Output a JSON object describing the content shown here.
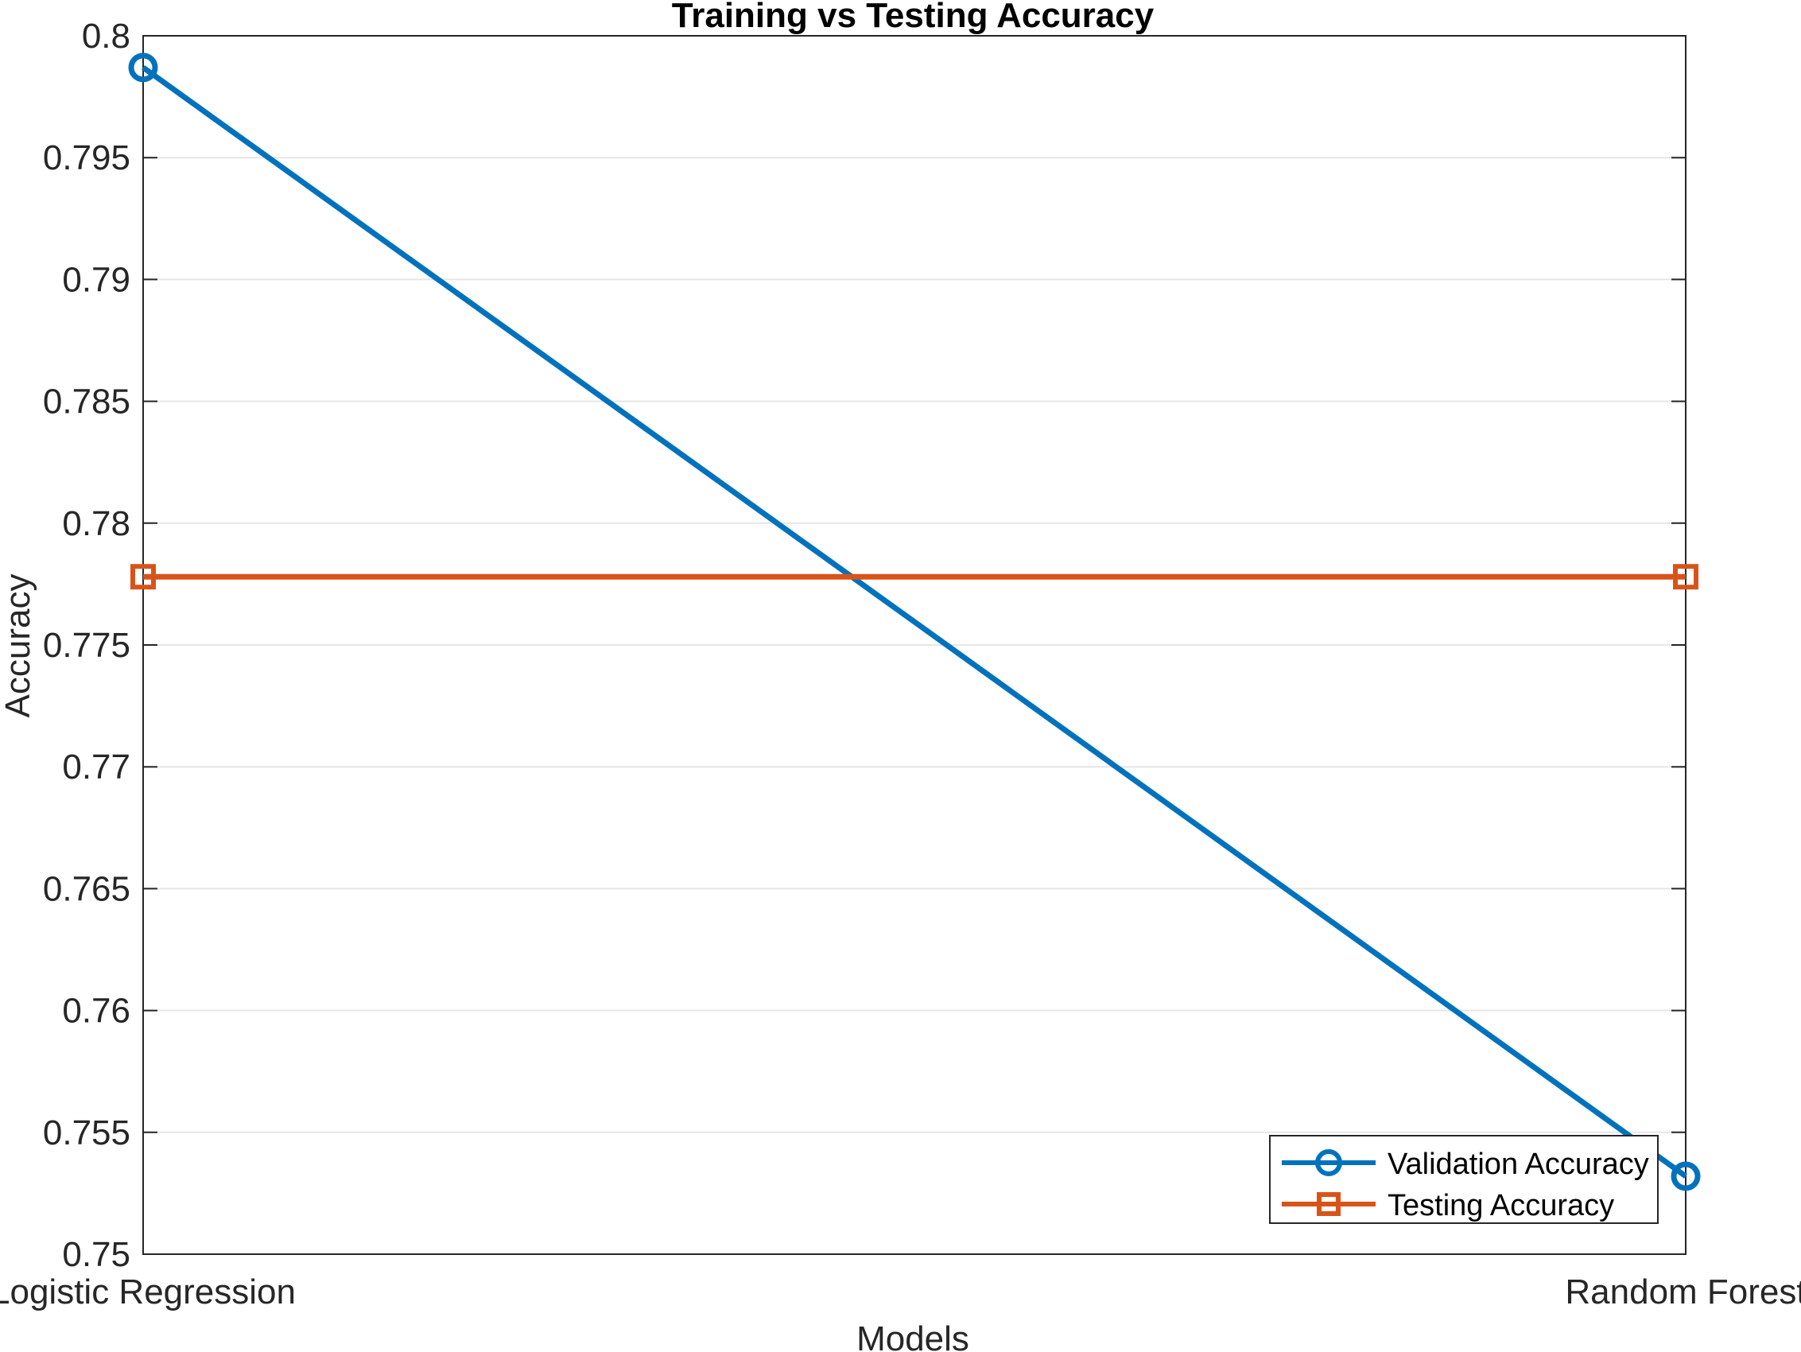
{
  "chart_data": {
    "type": "line",
    "title": "Training vs Testing Accuracy",
    "xlabel": "Models",
    "ylabel": "Accuracy",
    "categories": [
      "Logistic Regression",
      "Random Forest"
    ],
    "ylim": [
      0.75,
      0.8
    ],
    "yticks": [
      0.75,
      0.755,
      0.76,
      0.765,
      0.77,
      0.775,
      0.78,
      0.785,
      0.79,
      0.795,
      0.8
    ],
    "ytick_labels": [
      "0.75",
      "0.755",
      "0.76",
      "0.765",
      "0.77",
      "0.775",
      "0.78",
      "0.785",
      "0.79",
      "0.795",
      "0.8"
    ],
    "grid": true,
    "legend_position": "bottom-right",
    "series": [
      {
        "name": "Validation Accuracy",
        "values": [
          0.7987,
          0.7532
        ],
        "color": "#0072BD",
        "marker": "circle"
      },
      {
        "name": "Testing Accuracy",
        "values": [
          0.7778,
          0.7778
        ],
        "color": "#D95319",
        "marker": "square"
      }
    ]
  }
}
